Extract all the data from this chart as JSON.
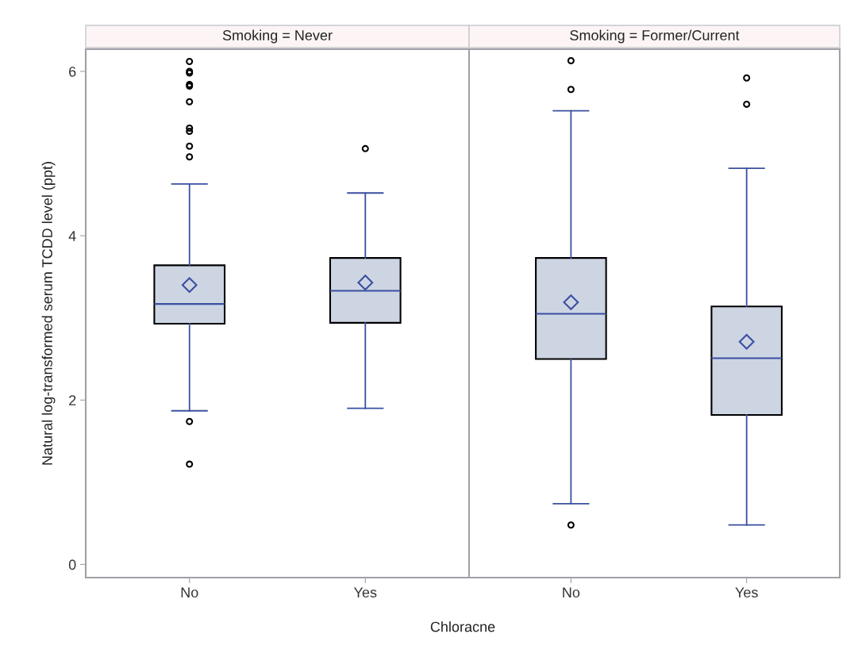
{
  "chart_data": [
    {
      "type": "box",
      "title": "Smoking = Never",
      "xlabel": "Chloracne",
      "ylabel": "Natural log-transformed serum TCDD level (ppt)",
      "categories": [
        "No",
        "Yes"
      ],
      "color": "#cdd5e3",
      "ylim": [
        -0.16,
        6.27
      ],
      "yticks": [
        0,
        2,
        4,
        6
      ],
      "grid": false,
      "legend": false,
      "boxes": [
        {
          "low": 1.87,
          "q1": 2.93,
          "median": 3.17,
          "q3": 3.64,
          "high": 4.63,
          "mean": 3.4,
          "outliers": [
            6.12,
            6.0,
            5.98,
            5.84,
            5.82,
            5.63,
            5.31,
            5.27,
            5.09,
            4.96,
            1.74,
            1.22
          ]
        },
        {
          "low": 1.9,
          "q1": 2.94,
          "median": 3.33,
          "q3": 3.73,
          "high": 4.52,
          "mean": 3.43,
          "outliers": [
            5.06
          ]
        }
      ]
    },
    {
      "type": "box",
      "title": "Smoking = Former/Current",
      "categories": [
        "No",
        "Yes"
      ],
      "color": "#cdd5e3",
      "ylim": [
        -0.16,
        6.27
      ],
      "yticks": [
        0,
        2,
        4,
        6
      ],
      "grid": false,
      "legend": false,
      "tick_labels": "x",
      "boxes": [
        {
          "low": 0.74,
          "q1": 2.5,
          "median": 3.05,
          "q3": 3.73,
          "high": 5.52,
          "mean": 3.19,
          "outliers": [
            6.13,
            5.78,
            0.48
          ]
        },
        {
          "low": 0.48,
          "q1": 1.82,
          "median": 2.51,
          "q3": 3.14,
          "high": 4.82,
          "mean": 2.71,
          "outliers": [
            5.92,
            5.6
          ]
        }
      ]
    }
  ]
}
